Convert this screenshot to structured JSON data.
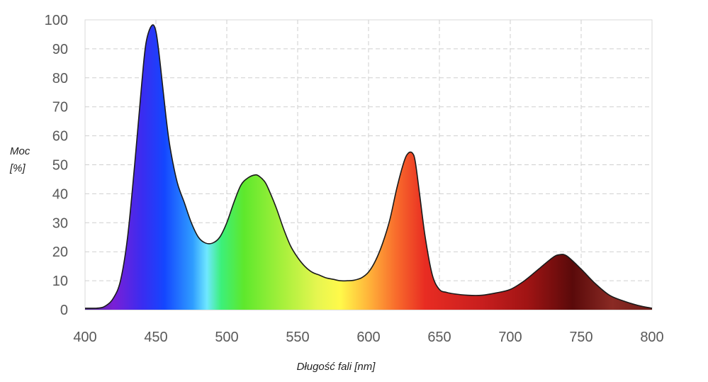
{
  "chart_data": {
    "type": "area",
    "title": "",
    "xlabel": "Długość fali [nm]",
    "ylabel_lines": [
      "Moc",
      "[%]"
    ],
    "xlim": [
      400,
      800
    ],
    "ylim": [
      0,
      100
    ],
    "x_ticks": [
      400,
      450,
      500,
      550,
      600,
      650,
      700,
      750,
      800
    ],
    "y_ticks": [
      0,
      10,
      20,
      30,
      40,
      50,
      60,
      70,
      80,
      90,
      100
    ],
    "grid": true,
    "fill": "visible spectrum gradient",
    "series": [
      {
        "x": [
          400,
          410,
          415,
          420,
          425,
          430,
          435,
          440,
          443,
          447,
          450,
          453,
          457,
          460,
          465,
          470,
          475,
          480,
          485,
          490,
          495,
          500,
          505,
          510,
          515,
          520,
          523,
          527,
          530,
          535,
          540,
          545,
          550,
          555,
          560,
          565,
          570,
          575,
          580,
          585,
          590,
          595,
          600,
          605,
          610,
          615,
          620,
          625,
          628,
          631,
          633,
          636,
          640,
          645,
          650,
          655,
          660,
          670,
          680,
          690,
          700,
          710,
          720,
          730,
          735,
          740,
          750,
          760,
          770,
          780,
          790,
          800
        ],
        "y": [
          0.5,
          0.6,
          1.5,
          4,
          10,
          25,
          50,
          78,
          92,
          98,
          96,
          85,
          67,
          56,
          44,
          37,
          30,
          25,
          23,
          23,
          25,
          30,
          37,
          43,
          45.5,
          46.5,
          46,
          44,
          41,
          35,
          28,
          22,
          18,
          15,
          13,
          12,
          11,
          10.5,
          10,
          10,
          10.2,
          11,
          13,
          17,
          23,
          31,
          42,
          51,
          54,
          54,
          51,
          40,
          25,
          12,
          7,
          6,
          5.5,
          5,
          5,
          5.8,
          7,
          10,
          14,
          18,
          19,
          18.5,
          14,
          9,
          5,
          3,
          1.5,
          0.5
        ]
      }
    ]
  }
}
